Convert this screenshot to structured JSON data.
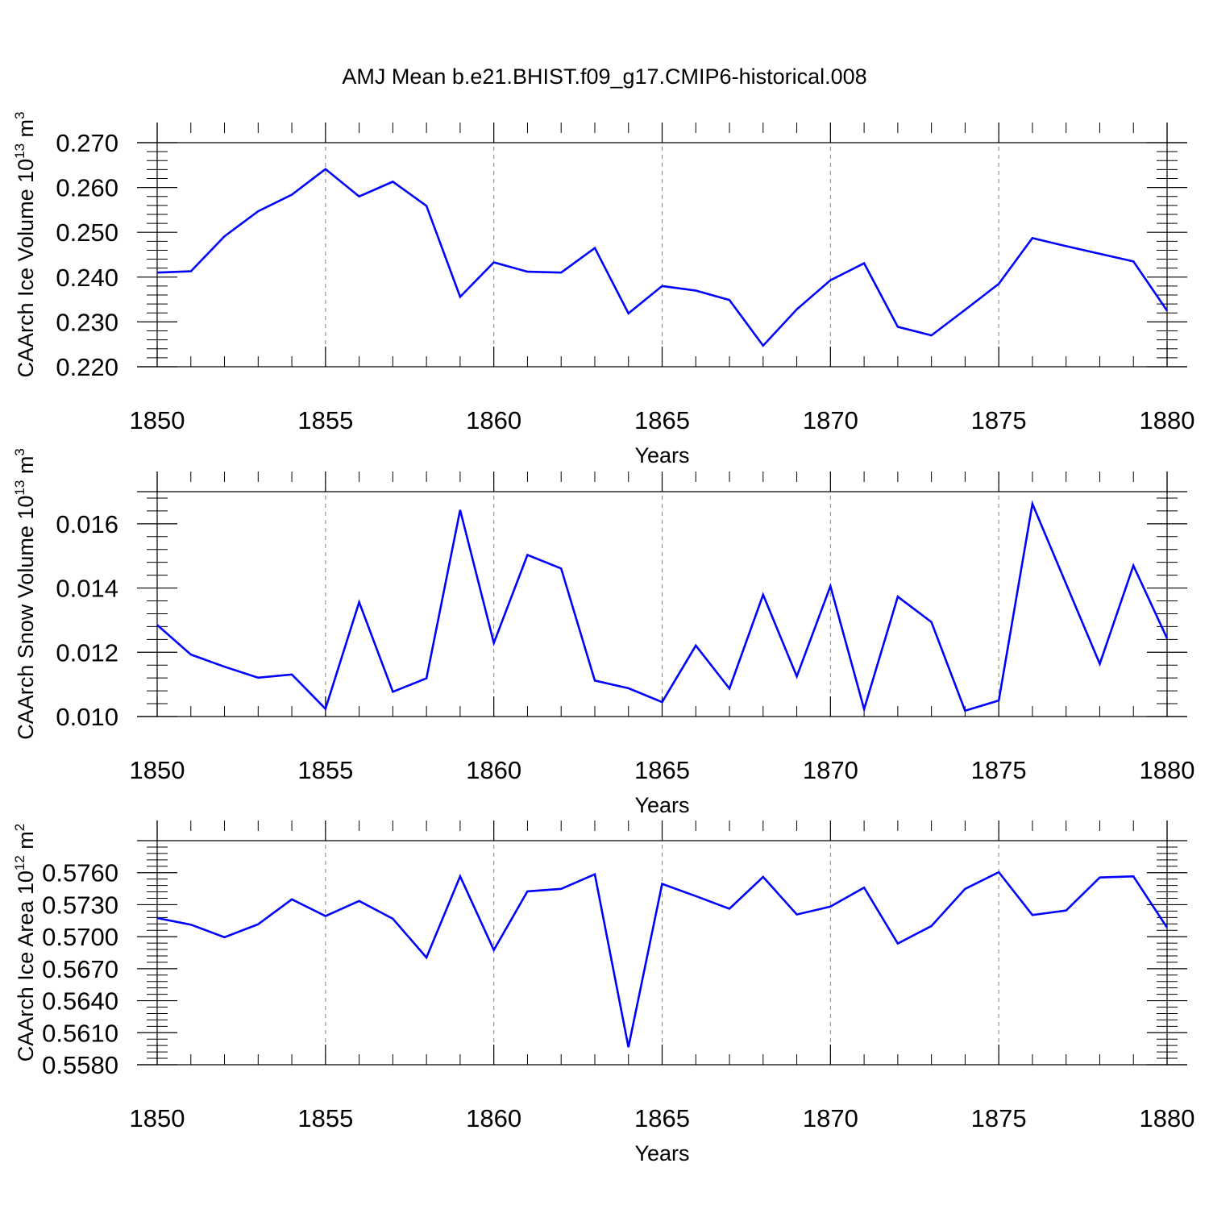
{
  "figure": {
    "title": "AMJ Mean b.e21.BHIST.f09_g17.CMIP6-historical.008"
  },
  "style": {
    "line_color": "#0000ff",
    "axis_color": "#000000",
    "grid_color": "#808080"
  },
  "chart_data": [
    {
      "type": "line",
      "title": "AMJ Mean b.e21.BHIST.f09_g17.CMIP6-historical.008",
      "ylabel_main": "CAArch Ice Volume 10",
      "ylabel_exp": "13",
      "ylabel_unit": " m",
      "ylabel_unit_exp": "3",
      "xlabel": "Years",
      "xlim": [
        1850,
        1880
      ],
      "ylim": [
        0.22,
        0.27
      ],
      "yticks": [
        0.22,
        0.23,
        0.24,
        0.25,
        0.26,
        0.27
      ],
      "ytick_labels": [
        "0.220",
        "0.230",
        "0.240",
        "0.250",
        "0.260",
        "0.270"
      ],
      "xticks": [
        1850,
        1855,
        1860,
        1865,
        1870,
        1875,
        1880
      ],
      "xtick_labels": [
        "1850",
        "1855",
        "1860",
        "1865",
        "1870",
        "1875",
        "1880"
      ],
      "grid": "vertical dashed at major x ticks",
      "series": [
        {
          "name": "CAArch Ice Volume",
          "x": [
            1850,
            1851,
            1852,
            1853,
            1854,
            1855,
            1856,
            1857,
            1858,
            1859,
            1860,
            1861,
            1862,
            1863,
            1864,
            1865,
            1866,
            1867,
            1868,
            1869,
            1870,
            1871,
            1872,
            1873,
            1874,
            1875,
            1876,
            1877,
            1878,
            1879,
            1880
          ],
          "values": [
            0.241,
            0.2413,
            0.2491,
            0.2547,
            0.2584,
            0.2641,
            0.258,
            0.2613,
            0.2559,
            0.2356,
            0.2433,
            0.2412,
            0.241,
            0.2465,
            0.2319,
            0.238,
            0.237,
            0.2349,
            0.2247,
            0.2328,
            0.2393,
            0.2431,
            0.2289,
            0.227,
            0.2327,
            0.2385,
            0.2487,
            0.2469,
            0.2452,
            0.2435,
            0.2325
          ]
        }
      ]
    },
    {
      "type": "line",
      "ylabel_main": "CAArch Snow Volume 10",
      "ylabel_exp": "13",
      "ylabel_unit": " m",
      "ylabel_unit_exp": "3",
      "xlabel": "Years",
      "xlim": [
        1850,
        1880
      ],
      "ylim": [
        0.01,
        0.017
      ],
      "yticks": [
        0.01,
        0.012,
        0.014,
        0.016
      ],
      "ytick_labels": [
        "0.010",
        "0.012",
        "0.014",
        "0.016"
      ],
      "xticks": [
        1850,
        1855,
        1860,
        1865,
        1870,
        1875,
        1880
      ],
      "xtick_labels": [
        "1850",
        "1855",
        "1860",
        "1865",
        "1870",
        "1875",
        "1880"
      ],
      "grid": "vertical dashed at major x ticks",
      "series": [
        {
          "name": "CAArch Snow Volume",
          "x": [
            1850,
            1851,
            1852,
            1853,
            1854,
            1855,
            1856,
            1857,
            1858,
            1859,
            1860,
            1861,
            1862,
            1863,
            1864,
            1865,
            1866,
            1867,
            1868,
            1869,
            1870,
            1871,
            1872,
            1873,
            1874,
            1875,
            1876,
            1877,
            1878,
            1879,
            1880
          ],
          "values": [
            0.01285,
            0.01193,
            0.01155,
            0.01121,
            0.01131,
            0.01024,
            0.01356,
            0.01077,
            0.01119,
            0.01643,
            0.01229,
            0.01503,
            0.01461,
            0.01112,
            0.01088,
            0.01045,
            0.01221,
            0.01087,
            0.01379,
            0.01125,
            0.01406,
            0.01023,
            0.01373,
            0.01294,
            0.01018,
            0.0105,
            0.01662,
            0.01413,
            0.01164,
            0.0147,
            0.01243
          ]
        }
      ]
    },
    {
      "type": "line",
      "ylabel_main": "CAArch Ice Area 10",
      "ylabel_exp": "12",
      "ylabel_unit": " m",
      "ylabel_unit_exp": "2",
      "xlabel": "Years",
      "xlim": [
        1850,
        1880
      ],
      "ylim": [
        0.558,
        0.579
      ],
      "yticks": [
        0.558,
        0.561,
        0.564,
        0.567,
        0.57,
        0.573,
        0.576
      ],
      "ytick_labels": [
        "0.5580",
        "0.5610",
        "0.5640",
        "0.5670",
        "0.5700",
        "0.5730",
        "0.5760"
      ],
      "xticks": [
        1850,
        1855,
        1860,
        1865,
        1870,
        1875,
        1880
      ],
      "xtick_labels": [
        "1850",
        "1855",
        "1860",
        "1865",
        "1870",
        "1875",
        "1880"
      ],
      "grid": "vertical dashed at major x ticks",
      "series": [
        {
          "name": "CAArch Ice Area",
          "x": [
            1850,
            1851,
            1852,
            1853,
            1854,
            1855,
            1856,
            1857,
            1858,
            1859,
            1860,
            1861,
            1862,
            1863,
            1864,
            1865,
            1866,
            1867,
            1868,
            1869,
            1870,
            1871,
            1872,
            1873,
            1874,
            1875,
            1876,
            1877,
            1878,
            1879,
            1880
          ],
          "values": [
            0.57175,
            0.57113,
            0.56995,
            0.57117,
            0.5735,
            0.57193,
            0.57335,
            0.57168,
            0.56805,
            0.57565,
            0.56875,
            0.57425,
            0.57448,
            0.57585,
            0.55965,
            0.57495,
            0.5738,
            0.57262,
            0.5756,
            0.57208,
            0.57282,
            0.5746,
            0.56935,
            0.571,
            0.57448,
            0.57605,
            0.57203,
            0.57245,
            0.57555,
            0.57565,
            0.57085
          ]
        }
      ]
    }
  ]
}
